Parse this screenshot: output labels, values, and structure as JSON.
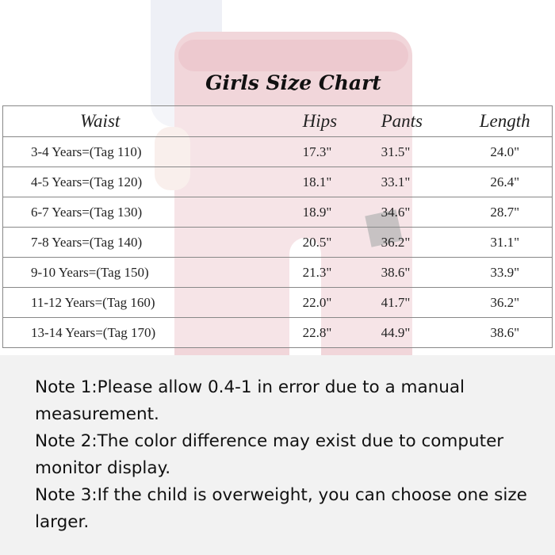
{
  "title": "Girls Size Chart",
  "table": {
    "headers": [
      "Waist",
      "Hips",
      "Pants",
      "Length"
    ],
    "rows": [
      [
        "3-4 Years=(Tag 110)",
        "17.3\"",
        "31.5\"",
        "24.0\""
      ],
      [
        "4-5 Years=(Tag 120)",
        "18.1\"",
        "33.1\"",
        "26.4\""
      ],
      [
        "6-7 Years=(Tag 130)",
        "18.9\"",
        "34.6\"",
        "28.7\""
      ],
      [
        "7-8 Years=(Tag 140)",
        "20.5\"",
        "36.2\"",
        "31.1\""
      ],
      [
        "9-10 Years=(Tag 150)",
        "21.3\"",
        "38.6\"",
        "33.9\""
      ],
      [
        "11-12 Years=(Tag 160)",
        "22.0\"",
        "41.7\"",
        "36.2\""
      ],
      [
        "13-14 Years=(Tag 170)",
        "22.8\"",
        "44.9\"",
        "38.6\""
      ]
    ]
  },
  "notes": [
    "Note 1:Please allow 0.4-1 in error due to a manual measurement.",
    "Note 2:The color difference may exist due to computer monitor display.",
    "Note 3:If the child is overweight, you can choose one size larger."
  ],
  "colors": {
    "pants": "#f1d6da",
    "notes_background": "#f2f2f2"
  }
}
